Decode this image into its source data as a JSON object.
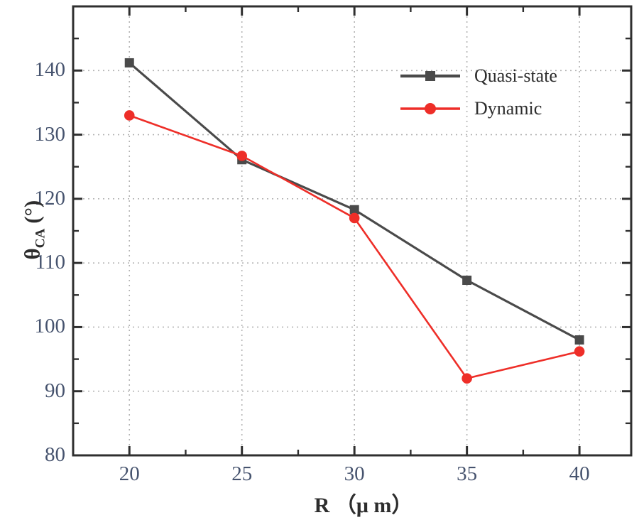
{
  "figure": {
    "background": "#ffffff"
  },
  "chart_data": {
    "type": "line",
    "title": "",
    "xlabel": "R （μ m）",
    "ylabel": {
      "symbol": "θ",
      "subscript": "CA",
      "unit": "(°)"
    },
    "x": [
      20,
      25,
      30,
      35,
      40
    ],
    "series": [
      {
        "name": "Quasi-state",
        "color": "#4a4a4a",
        "marker": "square",
        "line_width": 3.2,
        "values": [
          141.2,
          126.1,
          118.3,
          107.3,
          98.0
        ]
      },
      {
        "name": "Dynamic",
        "color": "#ee2e28",
        "marker": "circle",
        "line_width": 2.6,
        "values": [
          133.0,
          126.7,
          117.0,
          92.0,
          96.2
        ]
      }
    ],
    "xlim": [
      17.5,
      42.3
    ],
    "ylim": [
      80,
      150
    ],
    "xticks": [
      20,
      25,
      30,
      35,
      40
    ],
    "yticks": [
      80,
      90,
      100,
      110,
      120,
      130,
      140
    ],
    "xticks_minor": [
      22.5,
      27.5,
      32.5,
      37.5
    ],
    "yticks_minor": [
      85,
      95,
      105,
      115,
      125,
      135,
      145
    ],
    "grid": "dashed-major-both-axes",
    "legend_position": "upper-right-inside",
    "colors": {
      "axis": "#2f2f2f",
      "grid": "#b3b3b3",
      "tick_label": "#46536e",
      "legend_text": "#2d2d2d"
    }
  }
}
